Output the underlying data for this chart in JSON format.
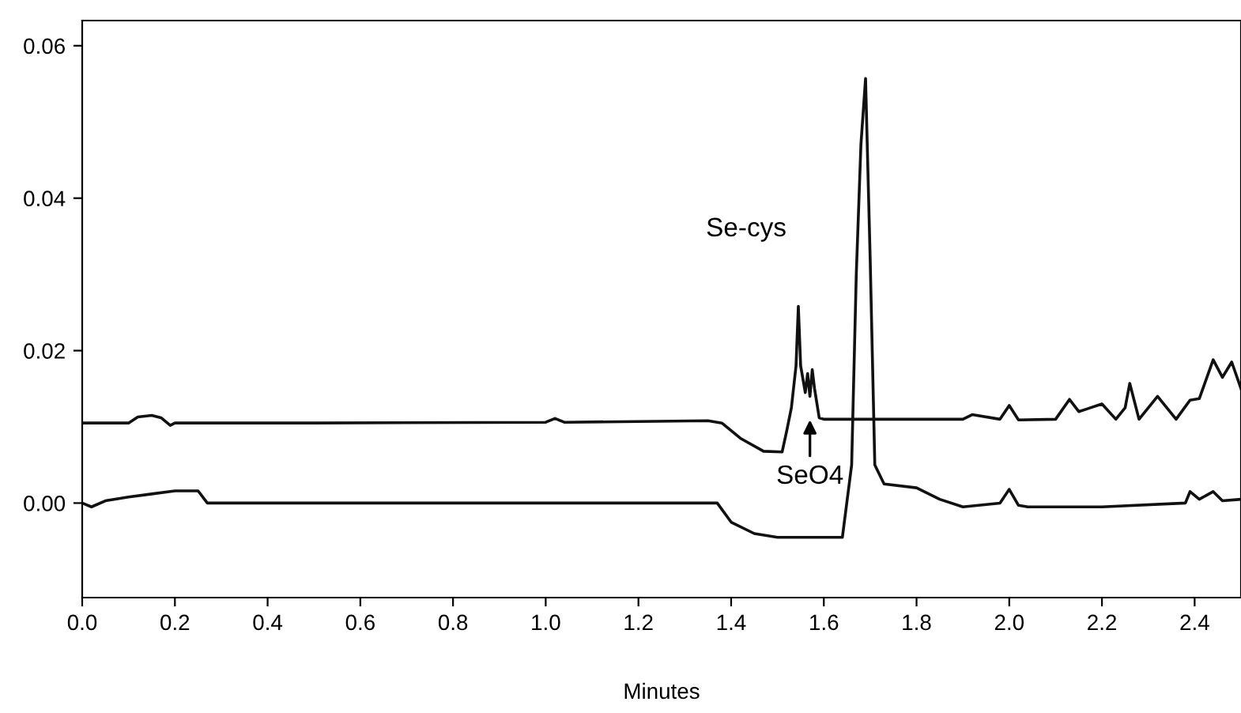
{
  "chart_data": {
    "type": "line",
    "xlabel": "Minutes",
    "xlim": [
      0,
      2.5
    ],
    "ylim": [
      -0.0124,
      0.0633
    ],
    "xticks": [
      {
        "value": 0,
        "label": "0.0"
      },
      0.2,
      0.4,
      0.6,
      0.8,
      {
        "value": 1,
        "label": "1.0"
      },
      1.2,
      1.4,
      1.6,
      1.8,
      {
        "value": 2,
        "label": "2.0"
      },
      2.2,
      2.4
    ],
    "yticks": [
      {
        "value": 0,
        "label": "0.00"
      },
      0.02,
      0.04,
      0.06
    ],
    "grid": false,
    "legend": false,
    "marker": "none",
    "line_style": "solid",
    "series": [
      {
        "color": "#111111",
        "x": [
          0,
          0.1,
          0.12,
          0.15,
          0.17,
          0.19,
          0.2,
          0.5,
          1.0,
          1.02,
          1.04,
          1.35,
          1.38,
          1.42,
          1.47,
          1.51,
          1.52,
          1.53,
          1.54,
          1.545,
          1.55,
          1.56,
          1.565,
          1.57,
          1.575,
          1.58,
          1.59,
          1.6,
          1.9,
          1.92,
          1.98,
          2.0,
          2.02,
          2.1,
          2.13,
          2.15,
          2.17,
          2.2,
          2.23,
          2.25,
          2.26,
          2.28,
          2.32,
          2.36,
          2.39,
          2.41,
          2.44,
          2.46,
          2.48,
          2.5
        ],
        "values": [
          0.0105,
          0.0105,
          0.0113,
          0.0115,
          0.0112,
          0.0102,
          0.0105,
          0.0105,
          0.0106,
          0.0111,
          0.0106,
          0.0108,
          0.0105,
          0.0085,
          0.0068,
          0.0067,
          0.0095,
          0.0125,
          0.018,
          0.0258,
          0.018,
          0.0145,
          0.017,
          0.014,
          0.0175,
          0.015,
          0.0112,
          0.011,
          0.011,
          0.0116,
          0.011,
          0.0128,
          0.0109,
          0.011,
          0.0136,
          0.012,
          0.0124,
          0.013,
          0.011,
          0.0125,
          0.0157,
          0.011,
          0.014,
          0.011,
          0.0135,
          0.0137,
          0.0188,
          0.0165,
          0.0185,
          0.015
        ]
      },
      {
        "color": "#111111",
        "x": [
          0,
          0.02,
          0.05,
          0.1,
          0.15,
          0.2,
          0.25,
          0.27,
          0.5,
          1.0,
          1.37,
          1.4,
          1.45,
          1.5,
          1.64,
          1.66,
          1.67,
          1.68,
          1.69,
          1.7,
          1.71,
          1.73,
          1.8,
          1.85,
          1.9,
          1.98,
          2.0,
          2.02,
          2.04,
          2.2,
          2.38,
          2.39,
          2.41,
          2.44,
          2.46,
          2.5
        ],
        "values": [
          0,
          -0.0005,
          0.0003,
          0.0008,
          0.0012,
          0.0016,
          0.0016,
          0,
          0,
          0,
          0,
          -0.0025,
          -0.004,
          -0.0045,
          -0.0045,
          0.005,
          0.03,
          0.047,
          0.0557,
          0.032,
          0.005,
          0.0025,
          0.002,
          0.0005,
          -0.0005,
          0,
          0.0018,
          -0.0003,
          -0.0005,
          -0.0005,
          0,
          0.0015,
          0.0005,
          0.0015,
          0.0003,
          0.0005
        ]
      }
    ],
    "annotations": [
      "Se-cys",
      {
        "text": "SeO4",
        "x": 1.57,
        "y": 0.0115
      }
    ]
  }
}
